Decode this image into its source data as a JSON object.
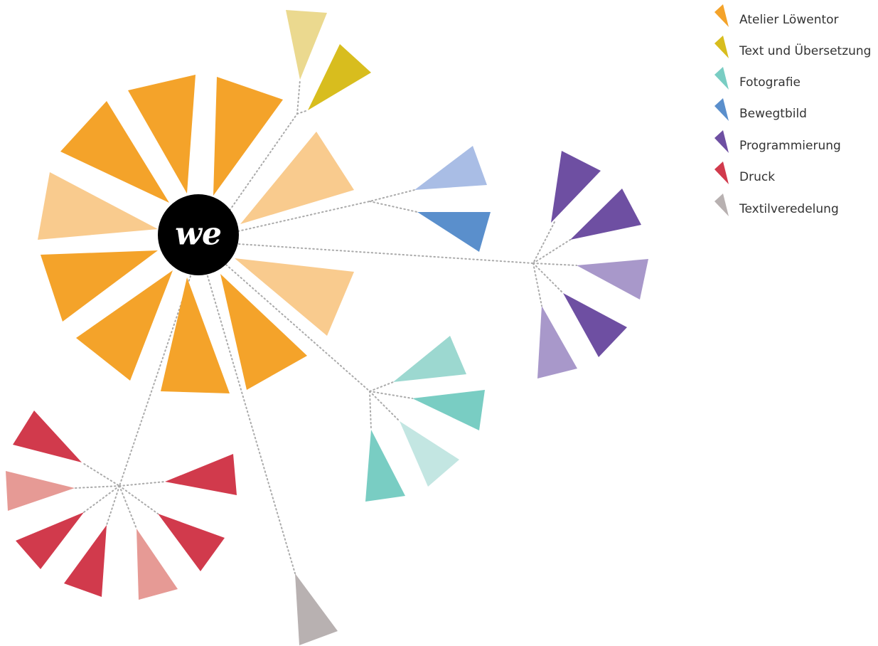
{
  "logo": "we",
  "legend": [
    "Atelier Löwentor",
    "Text und Übersetzung",
    "Fotografie",
    "Bewegtbild",
    "Programmierung",
    "Druck",
    "Textilveredelung"
  ]
}
